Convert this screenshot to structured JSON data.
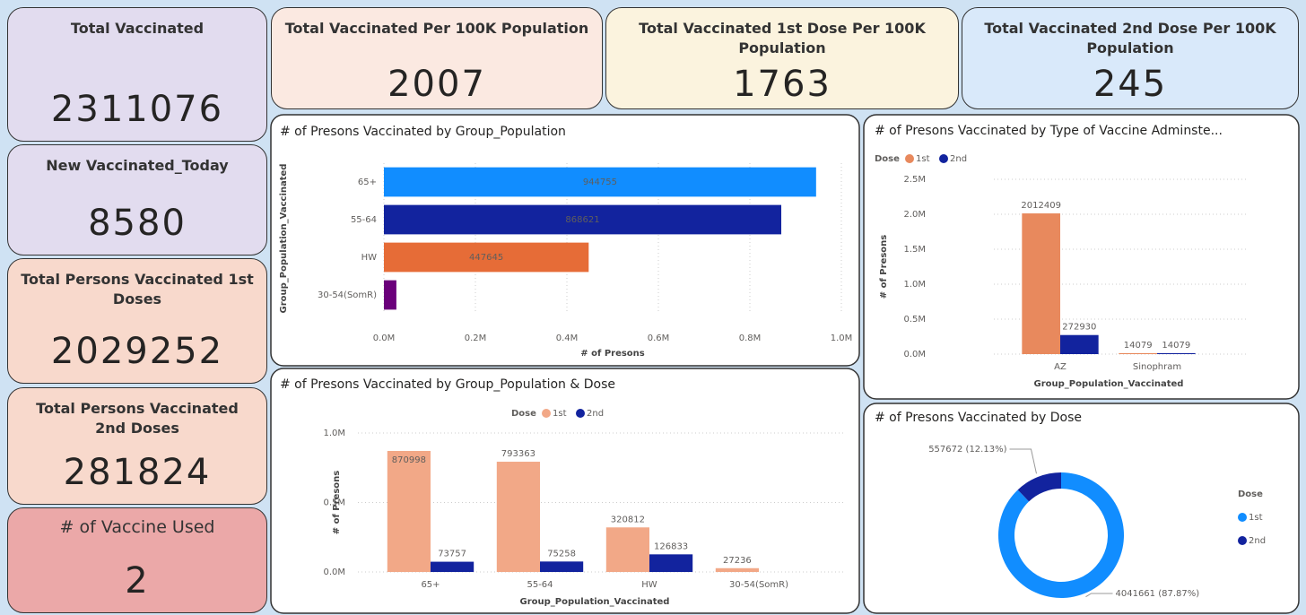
{
  "cards": [
    {
      "title": "Total Vaccinated",
      "value": 2311076
    },
    {
      "title": "New Vaccinated_Today",
      "value": 8580
    },
    {
      "title": "Total Persons Vaccinated 1st Doses",
      "value": 2029252
    },
    {
      "title": "Total Persons Vaccinated 2nd Doses",
      "value": 281824
    },
    {
      "title": "# of Vaccine Used",
      "value": 2
    },
    {
      "title": "Total Vaccinated Per 100K Population",
      "value": 2007
    },
    {
      "title": "Total Vaccinated 1st Dose Per 100K Population",
      "value": 1763
    },
    {
      "title": "Total Vaccinated 2nd Dose Per 100K Population",
      "value": 245
    }
  ],
  "chart_data": [
    {
      "type": "hbar",
      "title": "# of Presons Vaccinated by Group_Population",
      "categories": [
        "65+",
        "55-64",
        "HW",
        "30-54(SomR)"
      ],
      "values": [
        944755,
        868621,
        447645,
        27236
      ],
      "colors": [
        "#118dff",
        "#12239e",
        "#e66c37",
        "#6b007b"
      ],
      "xlim": [
        0,
        1000000
      ],
      "xticks": [
        {
          "value": 0,
          "label": "0.0M"
        },
        {
          "value": 200000,
          "label": "0.2M"
        },
        {
          "value": 400000,
          "label": "0.4M"
        },
        {
          "value": 600000,
          "label": "0.6M"
        },
        {
          "value": 800000,
          "label": "0.8M"
        },
        {
          "value": 1000000,
          "label": "1.0M"
        }
      ],
      "x_label": "# of Presons",
      "y_label": "Group_Population_Vaccinated",
      "grid": true
    },
    {
      "type": "bar",
      "title": "# of Presons Vaccinated by Group_Population & Dose",
      "categories": [
        "65+",
        "55-64",
        "HW",
        "30-54(SomR)"
      ],
      "legend_title": "Dose",
      "series": [
        {
          "name": "1st",
          "color": "#f2a887",
          "values": [
            870998,
            793363,
            320812,
            27236
          ]
        },
        {
          "name": "2nd",
          "color": "#12239e",
          "values": [
            73757,
            75258,
            126833,
            null
          ]
        }
      ],
      "ylim": [
        0,
        1000000
      ],
      "yticks": [
        {
          "value": 0,
          "label": "0.0M"
        },
        {
          "value": 500000,
          "label": "0.5M"
        },
        {
          "value": 1000000,
          "label": "1.0M"
        }
      ],
      "x_label": "Group_Population_Vaccinated",
      "y_label": "# of Presons",
      "grid": true
    },
    {
      "type": "bar",
      "title": "# of Presons Vaccinated by Type of Vaccine Adminste...",
      "categories": [
        "AZ",
        "Sinophram"
      ],
      "legend_title": "Dose",
      "series": [
        {
          "name": "1st",
          "color": "#e8895d",
          "values": [
            2012409,
            14079
          ]
        },
        {
          "name": "2nd",
          "color": "#12239e",
          "values": [
            272930,
            14079
          ]
        }
      ],
      "ylim": [
        0,
        2500000
      ],
      "yticks": [
        {
          "value": 0,
          "label": "0.0M"
        },
        {
          "value": 500000,
          "label": "0.5M"
        },
        {
          "value": 1000000,
          "label": "1.0M"
        },
        {
          "value": 1500000,
          "label": "1.5M"
        },
        {
          "value": 2000000,
          "label": "2.0M"
        },
        {
          "value": 2500000,
          "label": "2.5M"
        }
      ],
      "x_label": "Group_Population_Vaccinated",
      "y_label": "# of Presons",
      "grid": true
    },
    {
      "type": "donut",
      "title": "# of Presons Vaccinated by Dose",
      "legend_title": "Dose",
      "categories": [
        "1st",
        "2nd"
      ],
      "values": [
        4041661,
        557672
      ],
      "value_labels": [
        "4041661 (87.87%)",
        "557672 (12.13%)"
      ],
      "colors": [
        "#118dff",
        "#12239e"
      ]
    }
  ]
}
